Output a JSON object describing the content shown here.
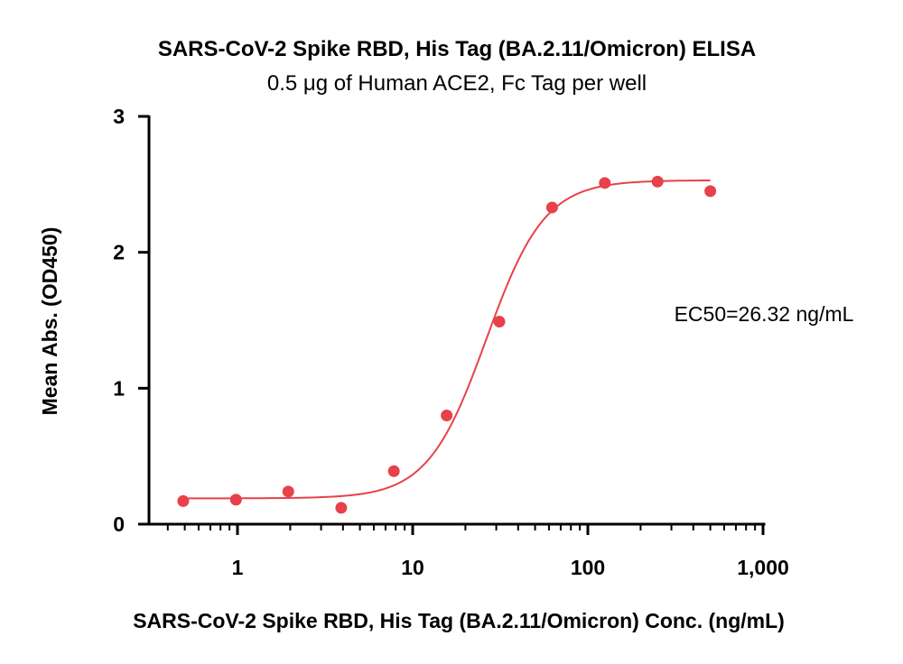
{
  "chart_data": {
    "type": "scatter",
    "title": "SARS-CoV-2 Spike RBD, His Tag (BA.2.11/Omicron) ELISA",
    "subtitle": "0.5 μg of Human ACE2, Fc Tag per well",
    "xlabel": "SARS-CoV-2 Spike RBD, His Tag (BA.2.11/Omicron) Conc. (ng/mL)",
    "ylabel": "Mean Abs. (OD450)",
    "xscale": "log",
    "xlim": [
      0.4,
      1000
    ],
    "ylim": [
      0,
      3
    ],
    "x_ticks": [
      {
        "value": 1,
        "label": "1"
      },
      {
        "value": 10,
        "label": "10"
      },
      {
        "value": 100,
        "label": "100"
      },
      {
        "value": 1000,
        "label": "1,000"
      }
    ],
    "y_ticks": [
      {
        "value": 0,
        "label": "0"
      },
      {
        "value": 1,
        "label": "1"
      },
      {
        "value": 2,
        "label": "2"
      },
      {
        "value": 3,
        "label": "3"
      }
    ],
    "series": [
      {
        "name": "Mean Abs.",
        "color": "#e8414a",
        "x": [
          0.49,
          0.98,
          1.95,
          3.91,
          7.81,
          15.63,
          31.25,
          62.5,
          125,
          250,
          500
        ],
        "y": [
          0.17,
          0.18,
          0.24,
          0.12,
          0.39,
          0.8,
          1.49,
          2.33,
          2.51,
          2.52,
          2.45
        ]
      }
    ],
    "fit": {
      "model": "4PL",
      "bottom": 0.19,
      "top": 2.53,
      "ec50": 26.32,
      "hill": 2.6,
      "x_range": [
        0.49,
        500
      ]
    },
    "annotation": "EC50=26.32 ng/mL",
    "grid": false,
    "legend": "none"
  }
}
